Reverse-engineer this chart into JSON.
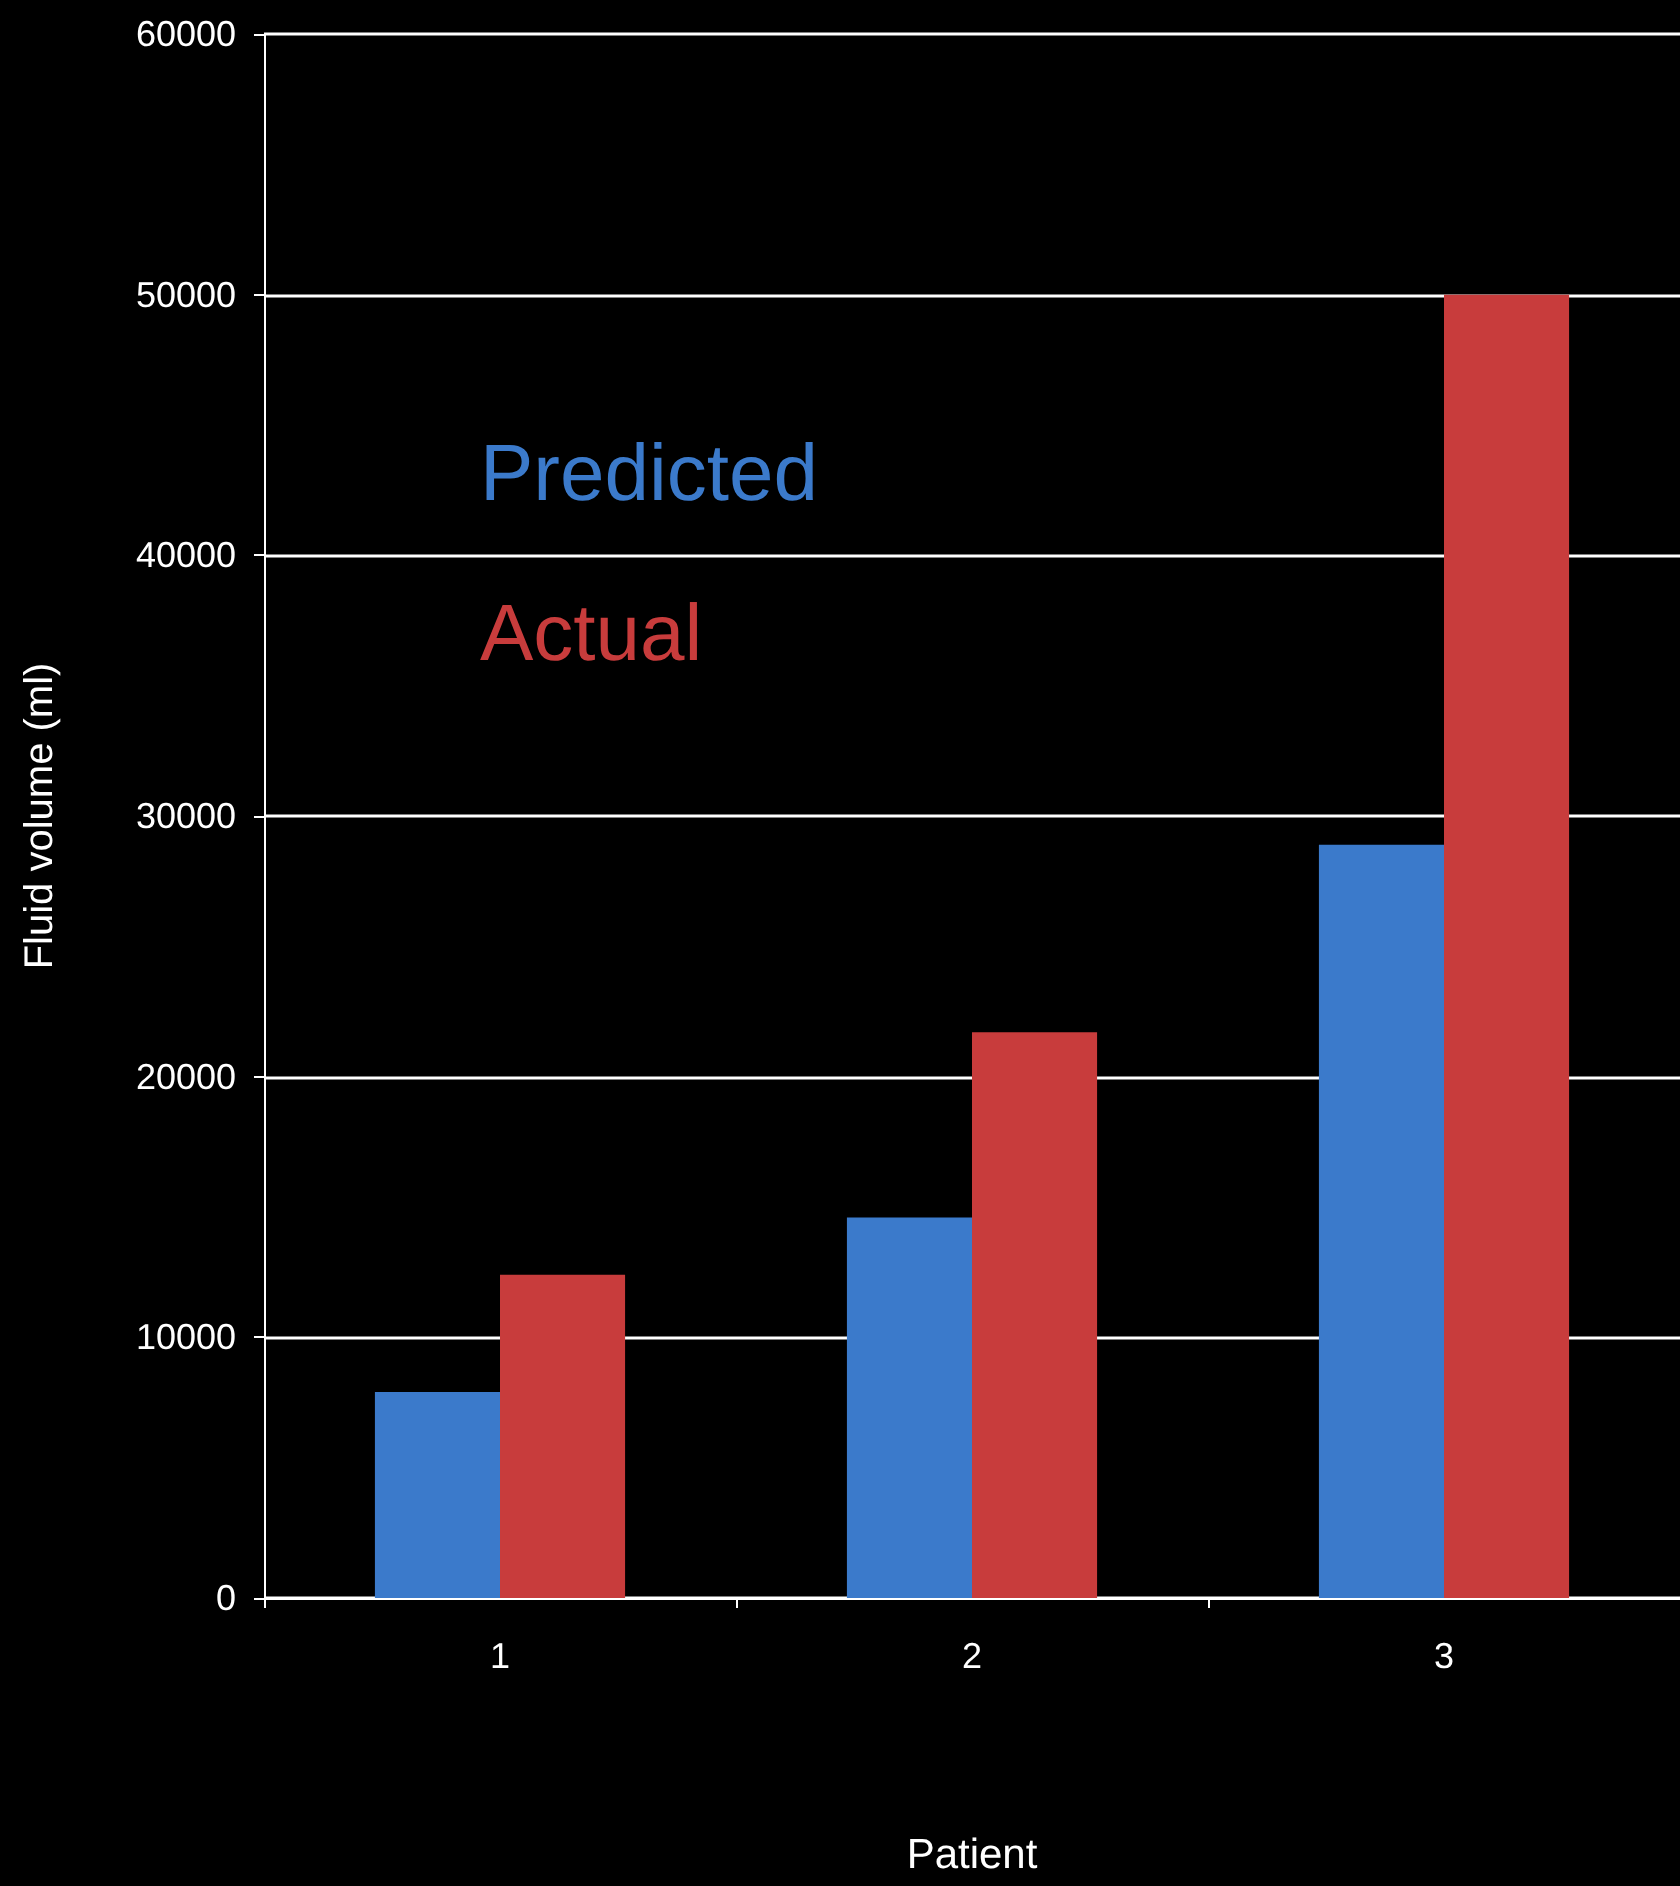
{
  "chart_data": {
    "type": "bar",
    "xlabel": "Patient",
    "ylabel": "Fluid volume (ml)",
    "categories": [
      "1",
      "2",
      "3"
    ],
    "series": [
      {
        "name": "Predicted",
        "color": "#3b7acb",
        "values": [
          7900,
          14600,
          28900
        ]
      },
      {
        "name": "Actual",
        "color": "#c83c3c",
        "values": [
          12400,
          21700,
          50000
        ]
      }
    ],
    "ylim": [
      0,
      60000
    ],
    "yticks": [
      0,
      10000,
      20000,
      30000,
      40000,
      50000,
      60000
    ],
    "grid": "y",
    "legend": "top left"
  }
}
